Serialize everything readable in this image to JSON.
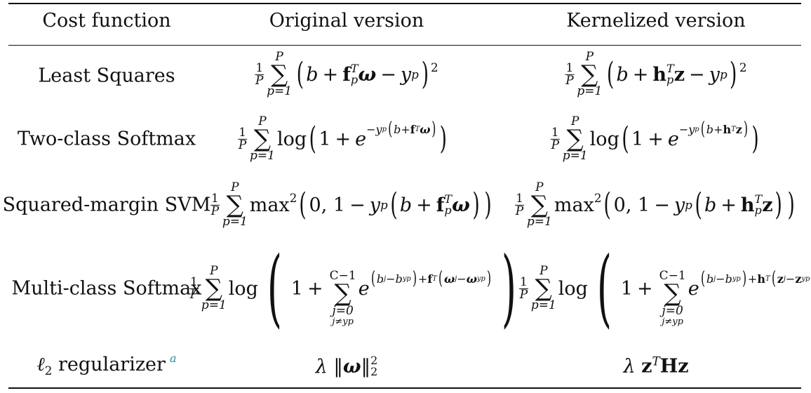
{
  "table": {
    "headers": [
      "Cost function",
      "Original version",
      "Kernelized version"
    ],
    "rows": [
      {
        "name": "Least Squares",
        "original": "1/P Σ_{p=1}^{P} (b + f_p^T ω − y_p)^2",
        "kernelized": "1/P Σ_{p=1}^{P} (b + h_p^T z − y_p)^2"
      },
      {
        "name": "Two-class Softmax",
        "original": "1/P Σ_{p=1}^{P} log(1 + e^{−y_p(b + f_p^T ω)})",
        "kernelized": "1/P Σ_{p=1}^{P} log(1 + e^{−y_p(b + h_p^T z)})"
      },
      {
        "name": "Squared-margin SVM",
        "original": "1/P Σ_{p=1}^{P} max^2(0, 1 − y_p(b + f_p^T ω))",
        "kernelized": "1/P Σ_{p=1}^{P} max^2(0, 1 − y_p(b + h_p^T z))"
      },
      {
        "name": "Multi-class Softmax",
        "original": "1/P Σ_{p=1}^{P} log(1 + Σ_{j=0, j≠yp}^{C−1} e^{(b_j − b_yp) + f_p^T(ω_j − ω_yp)})",
        "kernelized": "1/P Σ_{p=1}^{P} log(1 + Σ_{j=0, j≠yp}^{C−1} e^{(b_j − b_yp) + h_p^T(z_j − z_yp)})"
      },
      {
        "name": "ℓ2 regularizer",
        "footnote": "a",
        "original": "λ ‖ω‖_2^2",
        "kernelized": "λ z^T H z"
      }
    ]
  },
  "glyphs": {
    "one": "1",
    "P": "P",
    "p_eq_1": "p=1",
    "sigma": "∑",
    "plus": "+",
    "minus": "−",
    "b": "b",
    "f": "f",
    "h": "h",
    "T": "T",
    "omega": "ω",
    "z": "z",
    "y": "y",
    "p": "p",
    "two": "2",
    "log": "log",
    "e": "e",
    "max": "max",
    "zero_comma": "0,",
    "one_m": "1",
    "C_minus_1": "C−1",
    "j_eq_0": "j=0",
    "j_neq_yp": "j≠yp",
    "j": "j",
    "yp": "yp",
    "lambda": "λ",
    "H": "H",
    "lpar": "(",
    "rpar": ")",
    "norm": "‖",
    "ell": "ℓ",
    "reg": " regularizer"
  }
}
